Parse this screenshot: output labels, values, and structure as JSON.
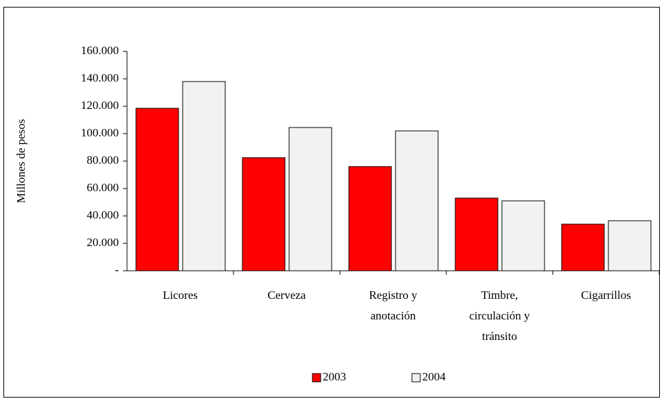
{
  "chart_data": {
    "type": "bar",
    "y_label": "Millones de pesos",
    "categories": [
      "Licores",
      "Cerveza",
      "Registro y anotación",
      "Timbre, circulación y tránsito",
      "Cigarrillos"
    ],
    "series": [
      {
        "name": "2003",
        "color": "#ff0000",
        "values": [
          118500,
          82500,
          76000,
          53000,
          34000
        ]
      },
      {
        "name": "2004",
        "color": "#f2f2f2",
        "values": [
          138000,
          104500,
          102000,
          51000,
          36500
        ]
      }
    ],
    "ylim": [
      0,
      160000
    ],
    "yticks": [
      {
        "value": 0,
        "label": "-"
      },
      {
        "value": 20000,
        "label": "20.000"
      },
      {
        "value": 40000,
        "label": "40.000"
      },
      {
        "value": 60000,
        "label": "60.000"
      },
      {
        "value": 80000,
        "label": "80.000"
      },
      {
        "value": 100000,
        "label": "100.000"
      },
      {
        "value": 120000,
        "label": "120.000"
      },
      {
        "value": 140000,
        "label": "140.000"
      },
      {
        "value": 160000,
        "label": "160.000"
      }
    ]
  }
}
